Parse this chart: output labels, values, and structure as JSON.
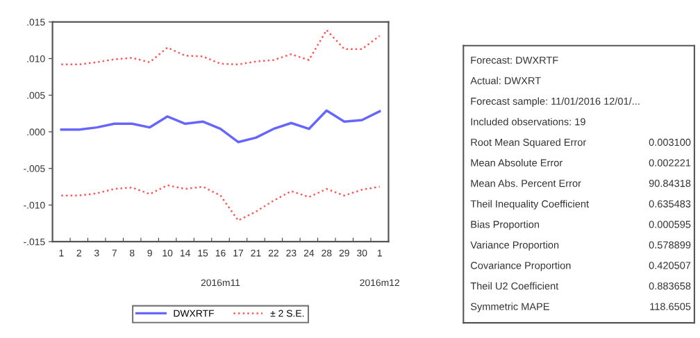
{
  "chart_data": [
    {
      "type": "line",
      "categories": [
        "1",
        "2",
        "3",
        "7",
        "8",
        "9",
        "10",
        "14",
        "15",
        "16",
        "17",
        "21",
        "22",
        "23",
        "24",
        "28",
        "29",
        "30",
        "1"
      ],
      "series": [
        {
          "name": "DWXRTF",
          "color": "#6666ff",
          "line_style": "solid",
          "values": [
            0.0003,
            0.0003,
            0.0006,
            0.0011,
            0.0011,
            0.0006,
            0.0021,
            0.0011,
            0.0014,
            0.0004,
            -0.0014,
            -0.0008,
            0.0004,
            0.0012,
            0.0004,
            0.0029,
            0.0014,
            0.0016,
            0.0028
          ]
        },
        {
          "name": "± 2 S.E.",
          "color": "#ff5555",
          "line_style": "dotted",
          "values": [
            0.0092,
            0.0092,
            0.0095,
            0.0099,
            0.0101,
            0.0095,
            0.0115,
            0.0104,
            0.0103,
            0.0093,
            0.0092,
            0.0096,
            0.0098,
            0.0106,
            0.0098,
            0.0139,
            0.0113,
            0.0113,
            0.0131
          ]
        },
        {
          "color": "#ff5555",
          "line_style": "dotted",
          "values": [
            -0.0087,
            -0.0087,
            -0.0084,
            -0.0078,
            -0.0076,
            -0.0085,
            -0.0073,
            -0.0078,
            -0.0075,
            -0.0087,
            -0.0121,
            -0.0109,
            -0.0094,
            -0.0081,
            -0.0089,
            -0.0078,
            -0.0087,
            -0.0079,
            -0.0075
          ]
        }
      ],
      "ylim": [
        -0.015,
        0.015
      ],
      "yticks": [
        {
          "value": -0.015,
          "label": "-.015"
        },
        {
          "value": -0.01,
          "label": "-.010"
        },
        {
          "value": -0.005,
          "label": "-.005"
        },
        {
          "value": 0,
          "label": ".000"
        },
        {
          "value": 0.005,
          "label": ".005"
        },
        {
          "value": 0.01,
          "label": ".010"
        },
        {
          "value": 0.015,
          "label": ".015"
        }
      ],
      "annotations": [
        "2016m11",
        "2016m12"
      ],
      "grid": false,
      "legend": "bottom",
      "marker": "none"
    },
    {
      "type": "other",
      "categories": [
        "Forecast: DWXRTF",
        "Actual: DWXRT",
        "Forecast sample: 11/01/2016 12/01/...",
        "Included observations: 19",
        "Root Mean Squared Error",
        "Mean Absolute Error",
        "Mean Abs. Percent Error",
        "Theil Inequality Coefficient",
        "Bias Proportion",
        "Variance Proportion",
        "Covariance Proportion",
        "Theil U2 Coefficient",
        "Symmetric MAPE"
      ],
      "value_labels": [
        null,
        null,
        null,
        null,
        "0.003100",
        "0.002221",
        "90.84318",
        "0.635483",
        "0.000595",
        "0.578899",
        "0.420507",
        "0.883658",
        "118.6505"
      ]
    }
  ]
}
